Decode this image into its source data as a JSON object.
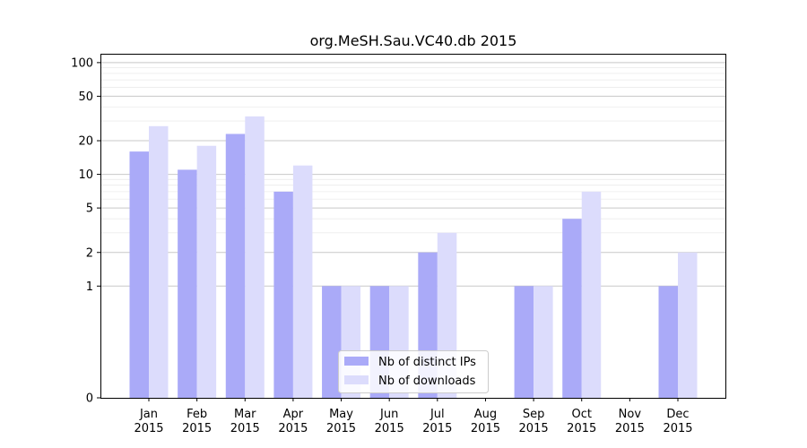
{
  "chart_data": {
    "type": "bar",
    "title": "org.MeSH.Sau.VC40.db 2015",
    "xlabel": "",
    "ylabel": "",
    "yscale": "symlog",
    "ylim": [
      0,
      120
    ],
    "yticks": [
      0,
      1,
      2,
      5,
      10,
      20,
      50,
      100
    ],
    "grid": true,
    "legend_position": "bottom-center",
    "categories": [
      {
        "month": "Jan",
        "year": "2015"
      },
      {
        "month": "Feb",
        "year": "2015"
      },
      {
        "month": "Mar",
        "year": "2015"
      },
      {
        "month": "Apr",
        "year": "2015"
      },
      {
        "month": "May",
        "year": "2015"
      },
      {
        "month": "Jun",
        "year": "2015"
      },
      {
        "month": "Jul",
        "year": "2015"
      },
      {
        "month": "Aug",
        "year": "2015"
      },
      {
        "month": "Sep",
        "year": "2015"
      },
      {
        "month": "Oct",
        "year": "2015"
      },
      {
        "month": "Nov",
        "year": "2015"
      },
      {
        "month": "Dec",
        "year": "2015"
      }
    ],
    "series": [
      {
        "name": "Nb of distinct IPs",
        "color": "#aaaaf8",
        "values": [
          16,
          11,
          23,
          7,
          1,
          1,
          2,
          0,
          1,
          4,
          0,
          1
        ]
      },
      {
        "name": "Nb of downloads",
        "color": "#dcdcfc",
        "values": [
          27,
          18,
          33,
          12,
          1,
          1,
          3,
          0,
          1,
          7,
          0,
          2
        ]
      }
    ]
  }
}
